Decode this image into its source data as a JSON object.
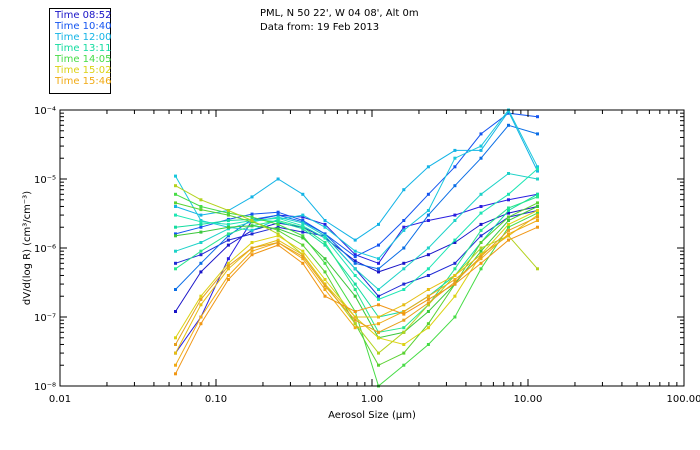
{
  "header": {
    "location": "PML, N 50 22', W 04 08', Alt 0m",
    "date": "Data from: 19 Feb 2013"
  },
  "chart_data": {
    "type": "line",
    "title": "PML, N 50 22', W 04 08', Alt 0m",
    "xlabel": "Aerosol Size (μm)",
    "ylabel": "dV/d(log R) (cm³/cm⁻³)",
    "xscale": "log",
    "yscale": "log",
    "xlim": [
      0.01,
      100.0
    ],
    "ylim": [
      1e-08,
      0.0001
    ],
    "xticks": [
      "0.01",
      "0.10",
      "1.00",
      "10.00",
      "100.00"
    ],
    "yticks": [
      "10⁻⁸",
      "10⁻⁷",
      "10⁻⁶",
      "10⁻⁵",
      "10⁻⁴"
    ],
    "legend_position": "top-left",
    "x": [
      0.055,
      0.08,
      0.12,
      0.17,
      0.25,
      0.36,
      0.5,
      0.78,
      1.1,
      1.6,
      2.3,
      3.4,
      5.0,
      7.5,
      11.5
    ],
    "series": [
      {
        "name": "Time 08:52",
        "color": "#1a14c8",
        "values": [
          1.2e-07,
          4.5e-07,
          1.1e-06,
          1.8e-06,
          2.3e-06,
          2e-06,
          1.4e-06,
          6.5e-07,
          4.5e-07,
          6e-07,
          8e-07,
          1.2e-06,
          2.2e-06,
          3.2e-06,
          4e-06
        ]
      },
      {
        "name": "Time 08:52",
        "color": "#2a1ee0",
        "values": [
          3e-08,
          1e-07,
          7e-07,
          2.5e-06,
          3e-06,
          2.8e-06,
          2.2e-06,
          8e-07,
          6e-07,
          2e-06,
          2.5e-06,
          3e-06,
          4e-06,
          5e-06,
          6e-06
        ]
      },
      {
        "name": "Time 08:52",
        "color": "#1f2ad4",
        "values": [
          6e-07,
          8e-07,
          1.3e-06,
          1.6e-06,
          2e-06,
          1.7e-06,
          1.5e-06,
          5e-07,
          2e-07,
          3e-07,
          4e-07,
          6e-07,
          1.5e-06,
          2.8e-06,
          3.5e-06
        ]
      },
      {
        "name": "Time 10:40",
        "color": "#1455f0",
        "values": [
          1.6e-06,
          2e-06,
          2.6e-06,
          3.1e-06,
          3.3e-06,
          2.5e-06,
          1.6e-06,
          7.5e-07,
          1.1e-06,
          2.5e-06,
          6e-06,
          1.5e-05,
          4.5e-05,
          9e-05,
          8e-05
        ]
      },
      {
        "name": "Time 10:40",
        "color": "#0a6ee6",
        "values": [
          2.5e-07,
          6e-07,
          1.5e-06,
          2.6e-06,
          3e-06,
          2.4e-06,
          1.6e-06,
          6e-07,
          5e-07,
          1e-06,
          3e-06,
          8e-06,
          2e-05,
          6e-05,
          4.5e-05
        ]
      },
      {
        "name": "Time 12:00",
        "color": "#14b4e6",
        "values": [
          4e-06,
          3e-06,
          3.5e-06,
          5.5e-06,
          1e-05,
          6e-06,
          2.5e-06,
          1.3e-06,
          2.2e-06,
          7e-06,
          1.5e-05,
          2.6e-05,
          2.6e-05,
          9.5e-05,
          1.3e-05
        ]
      },
      {
        "name": "Time 12:00",
        "color": "#19c8dc",
        "values": [
          1.1e-05,
          2.5e-06,
          2e-06,
          1.8e-06,
          2.6e-06,
          3e-06,
          2e-06,
          9e-07,
          7e-07,
          1.8e-06,
          3.5e-06,
          2e-05,
          3e-05,
          0.0001,
          1.5e-05
        ]
      },
      {
        "name": "Time 12:00",
        "color": "#1ed2c8",
        "values": [
          9e-07,
          1.2e-06,
          1.9e-06,
          2.4e-06,
          2.8e-06,
          2.3e-06,
          1.5e-06,
          5e-07,
          2.5e-07,
          5e-07,
          1e-06,
          2.5e-06,
          6e-06,
          1.2e-05,
          1e-05
        ]
      },
      {
        "name": "Time 13:11",
        "color": "#14dca0",
        "values": [
          2e-06,
          2.2e-06,
          2.5e-06,
          2.6e-06,
          2.4e-06,
          1.9e-06,
          1.1e-06,
          3e-07,
          1e-07,
          1.2e-07,
          2e-07,
          4e-07,
          1.2e-06,
          3.5e-06,
          6e-06
        ]
      },
      {
        "name": "Time 13:11",
        "color": "#28e68c",
        "values": [
          5e-07,
          9e-07,
          1.6e-06,
          2.1e-06,
          2.5e-06,
          2e-06,
          1.2e-06,
          2.5e-07,
          6e-08,
          7e-08,
          1.5e-07,
          5e-07,
          1.8e-06,
          3.8e-06,
          5.5e-06
        ]
      },
      {
        "name": "Time 13:11",
        "color": "#1ee6b4",
        "values": [
          3e-06,
          2.4e-06,
          2.2e-06,
          2.5e-06,
          2.7e-06,
          2.1e-06,
          1.4e-06,
          4e-07,
          1.8e-07,
          2.5e-07,
          5e-07,
          1.3e-06,
          3.2e-06,
          6e-06,
          1.4e-05
        ]
      },
      {
        "name": "Time 14:05",
        "color": "#46dc46",
        "values": [
          6e-06,
          4e-06,
          3.2e-06,
          2.8e-06,
          2.2e-06,
          1.5e-06,
          6e-07,
          1.2e-07,
          1e-08,
          2e-08,
          4e-08,
          1e-07,
          5e-07,
          2e-06,
          3.2e-06
        ]
      },
      {
        "name": "Time 14:05",
        "color": "#5ad232",
        "values": [
          4.5e-06,
          3.6e-06,
          3e-06,
          2.4e-06,
          1.8e-06,
          1.1e-06,
          4.5e-07,
          8e-08,
          2e-08,
          3e-08,
          8e-08,
          3e-07,
          1.2e-06,
          2.8e-06,
          4.5e-06
        ]
      },
      {
        "name": "Time 14:05",
        "color": "#3cc83c",
        "values": [
          1.5e-06,
          1.7e-06,
          2e-06,
          2.1e-06,
          1.9e-06,
          1.4e-06,
          7e-07,
          2e-07,
          5e-08,
          6e-08,
          1.2e-07,
          3e-07,
          9e-07,
          2.5e-06,
          4e-06
        ]
      },
      {
        "name": "Time 15:02",
        "color": "#b4d21e",
        "values": [
          8e-06,
          5e-06,
          3.5e-06,
          2.5e-06,
          1.6e-06,
          8e-07,
          3e-07,
          8e-08,
          3e-08,
          6e-08,
          1.5e-07,
          4e-07,
          1e-06,
          1.5e-06,
          5e-07
        ]
      },
      {
        "name": "Time 15:02",
        "color": "#dcd214",
        "values": [
          5e-08,
          2e-07,
          6e-07,
          1.2e-06,
          1.5e-06,
          9e-07,
          3.5e-07,
          1e-07,
          5e-08,
          4e-08,
          7e-08,
          2e-07,
          8e-07,
          2.2e-06,
          3.5e-06
        ]
      },
      {
        "name": "Time 15:02",
        "color": "#e6be14",
        "values": [
          3e-08,
          1.5e-07,
          5e-07,
          1e-06,
          1.3e-06,
          8e-07,
          3e-07,
          1e-07,
          1e-07,
          1.5e-07,
          2.5e-07,
          4e-07,
          8e-07,
          1.5e-06,
          3e-06
        ]
      },
      {
        "name": "Time 15:46",
        "color": "#f0aa14",
        "values": [
          2e-08,
          1e-07,
          4e-07,
          9e-07,
          1.2e-06,
          7e-07,
          2.5e-07,
          7e-08,
          8e-08,
          1.2e-07,
          2e-07,
          3.5e-07,
          7e-07,
          1.6e-06,
          2.5e-06
        ]
      },
      {
        "name": "Time 15:46",
        "color": "#f09614",
        "values": [
          1.5e-08,
          8e-08,
          3.5e-07,
          8e-07,
          1.1e-06,
          6e-07,
          2e-07,
          1.2e-07,
          1.5e-07,
          1.1e-07,
          1.8e-07,
          3e-07,
          6e-07,
          1.3e-06,
          2e-06
        ]
      },
      {
        "name": "Time 15:46",
        "color": "#e6a01e",
        "values": [
          4e-08,
          1.8e-07,
          5.5e-07,
          1e-06,
          1.2e-06,
          7.5e-07,
          2.8e-07,
          9e-08,
          6e-08,
          9e-08,
          1.6e-07,
          3.2e-07,
          7.5e-07,
          1.8e-06,
          2.8e-06
        ]
      }
    ]
  },
  "legend": {
    "items": [
      {
        "label": "Time 08:52",
        "color": "#1a14c8"
      },
      {
        "label": "Time 10:40",
        "color": "#1455f0"
      },
      {
        "label": "Time 12:00",
        "color": "#14b4e6"
      },
      {
        "label": "Time 13:11",
        "color": "#14dca0"
      },
      {
        "label": "Time 14:05",
        "color": "#46dc46"
      },
      {
        "label": "Time 15:02",
        "color": "#dcd214"
      },
      {
        "label": "Time 15:46",
        "color": "#f0aa14"
      }
    ]
  }
}
